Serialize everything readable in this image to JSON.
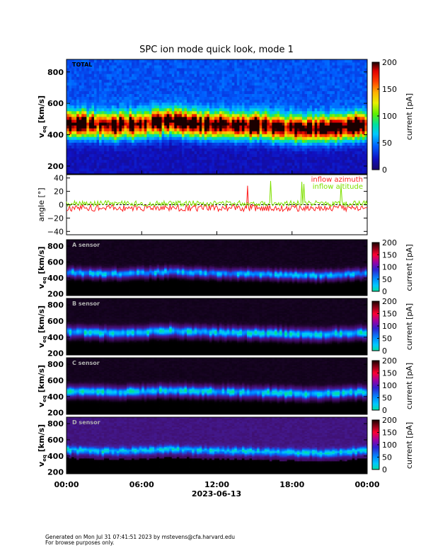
{
  "title": "SPC ion mode quick look, mode 1",
  "footer": {
    "line1": "Generated on Mon Jul 31 07:41:51 2023 by mstevens@cfa.harvard.edu",
    "line2": "For browse purposes only."
  },
  "chart_data": [
    {
      "type": "heatmap",
      "panel_label": "TOTAL",
      "ylabel_main": "v",
      "ylabel_sub": "eq",
      "ylabel_units": "[km/s]",
      "y_ticks": [
        "200",
        "400",
        "600",
        "800"
      ],
      "ylim": [
        150,
        880
      ],
      "colorbar_label": "current [pA]",
      "colorbar_ticks": [
        "0",
        "50",
        "100",
        "150",
        "200"
      ],
      "colorbar_range": [
        0,
        200
      ],
      "band_profile": {
        "center_kms": [
          470,
          460,
          455,
          465,
          480,
          470,
          460,
          455,
          450,
          440,
          430,
          445,
          460
        ],
        "width_kms": 90,
        "peak_pA": 180
      },
      "background_pA": 40
    },
    {
      "type": "line",
      "ylabel": "angle [°]",
      "y_ticks": [
        "40",
        "20",
        "0",
        "−20",
        "−40"
      ],
      "ylim": [
        -45,
        45
      ],
      "series": [
        {
          "name": "inflow azimuth",
          "color": "#ff2020",
          "mean": -5,
          "spread": 5
        },
        {
          "name": "inflow altitude",
          "color": "#7fe000",
          "mean": 2,
          "spread": 4
        }
      ]
    },
    {
      "type": "heatmap",
      "panel_label": "A sensor",
      "ylabel_main": "v",
      "ylabel_sub": "eq",
      "ylabel_units": "[km/s]",
      "y_ticks": [
        "200",
        "400",
        "600",
        "800"
      ],
      "ylim": [
        180,
        880
      ],
      "colorbar_label": "current [pA]",
      "colorbar_ticks": [
        "0",
        "50",
        "100",
        "150",
        "200"
      ],
      "colorbar_range": [
        0,
        200
      ],
      "band_profile": {
        "center_kms": [
          470,
          460,
          455,
          465,
          480,
          470,
          460,
          455,
          450,
          440,
          430,
          445,
          460
        ],
        "width_kms": 60,
        "peak_pA": 70
      },
      "background_pA": 4
    },
    {
      "type": "heatmap",
      "panel_label": "B sensor",
      "ylabel_main": "v",
      "ylabel_sub": "eq",
      "ylabel_units": "[km/s]",
      "y_ticks": [
        "200",
        "400",
        "600",
        "800"
      ],
      "ylim": [
        180,
        880
      ],
      "colorbar_label": "current [pA]",
      "colorbar_ticks": [
        "0",
        "50",
        "100",
        "150",
        "200"
      ],
      "colorbar_range": [
        0,
        200
      ],
      "band_profile": {
        "center_kms": [
          470,
          460,
          455,
          465,
          480,
          470,
          460,
          455,
          450,
          440,
          430,
          445,
          460
        ],
        "width_kms": 70,
        "peak_pA": 80
      },
      "background_pA": 4
    },
    {
      "type": "heatmap",
      "panel_label": "C sensor",
      "ylabel_main": "v",
      "ylabel_sub": "eq",
      "ylabel_units": "[km/s]",
      "y_ticks": [
        "200",
        "400",
        "600",
        "800"
      ],
      "ylim": [
        180,
        880
      ],
      "colorbar_label": "current [pA]",
      "colorbar_ticks": [
        "0",
        "50",
        "100",
        "150",
        "200"
      ],
      "colorbar_range": [
        0,
        200
      ],
      "band_profile": {
        "center_kms": [
          470,
          460,
          455,
          465,
          480,
          470,
          460,
          455,
          450,
          440,
          430,
          445,
          460
        ],
        "width_kms": 70,
        "peak_pA": 80
      },
      "background_pA": 4
    },
    {
      "type": "heatmap",
      "panel_label": "D sensor",
      "ylabel_main": "v",
      "ylabel_sub": "eq",
      "ylabel_units": "[km/s]",
      "y_ticks": [
        "200",
        "400",
        "600",
        "800"
      ],
      "ylim": [
        180,
        880
      ],
      "colorbar_label": "current [pA]",
      "colorbar_ticks": [
        "0",
        "50",
        "100",
        "150",
        "200"
      ],
      "colorbar_range": [
        0,
        200
      ],
      "band_profile": {
        "center_kms": [
          470,
          460,
          455,
          465,
          480,
          470,
          460,
          455,
          450,
          440,
          430,
          445,
          460
        ],
        "width_kms": 60,
        "peak_pA": 60
      },
      "background_pA": 25
    }
  ],
  "x_axis": {
    "tick_labels": [
      "00:00",
      "06:00",
      "12:00",
      "18:00",
      "00:00"
    ],
    "date_label": "2023-06-13"
  }
}
